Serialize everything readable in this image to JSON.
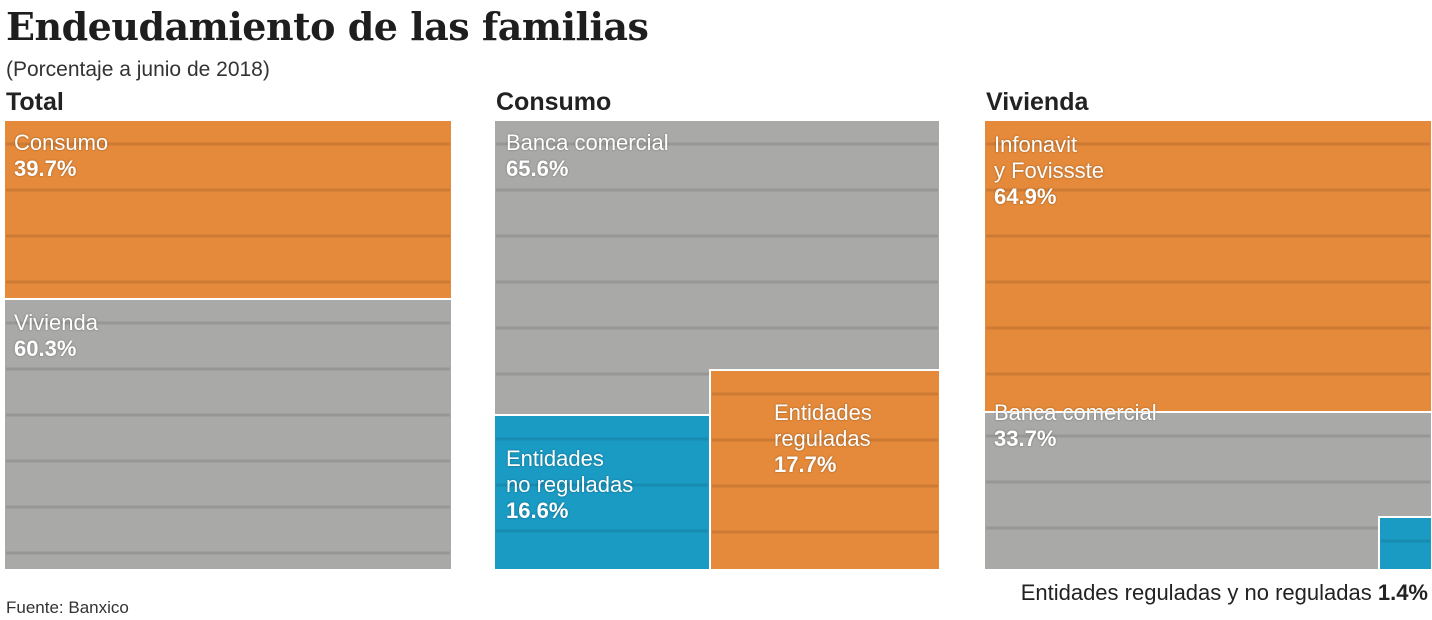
{
  "header": {
    "title": "Endeudamiento de las familias",
    "subtitle": "(Porcentaje a junio de 2018)"
  },
  "colors": {
    "orange": "#e58a3a",
    "gray": "#a9aaa8",
    "teal": "#1a9bc4",
    "divider": "#ffffff"
  },
  "chart_data": [
    {
      "type": "treemap",
      "title": "Total",
      "segments": [
        {
          "name": "Consumo",
          "value": 39.7,
          "label": "39.7%",
          "color": "orange"
        },
        {
          "name": "Vivienda",
          "value": 60.3,
          "label": "60.3%",
          "color": "gray"
        }
      ]
    },
    {
      "type": "treemap",
      "title": "Consumo",
      "segments": [
        {
          "name": "Banca comercial",
          "value": 65.6,
          "label": "65.6%",
          "color": "gray"
        },
        {
          "name": "Entidades no reguladas",
          "value": 16.6,
          "label": "16.6%",
          "color": "teal",
          "lines": [
            "Entidades",
            "no reguladas"
          ]
        },
        {
          "name": "Entidades reguladas",
          "value": 17.7,
          "label": "17.7%",
          "color": "orange",
          "lines": [
            "Entidades",
            "reguladas"
          ]
        }
      ]
    },
    {
      "type": "treemap",
      "title": "Vivienda",
      "segments": [
        {
          "name": "Infonavit y Fovissste",
          "value": 64.9,
          "label": "64.9%",
          "color": "orange",
          "lines": [
            "Infonavit",
            "y Fovissste"
          ]
        },
        {
          "name": "Banca comercial",
          "value": 33.7,
          "label": "33.7%",
          "color": "gray"
        },
        {
          "name": "Entidades reguladas y no reguladas",
          "value": 1.4,
          "label": "1.4%",
          "color": "teal"
        }
      ]
    }
  ],
  "footnote": {
    "text": "Entidades reguladas y no reguladas",
    "value": "1.4%"
  },
  "source": "Fuente: Banxico"
}
